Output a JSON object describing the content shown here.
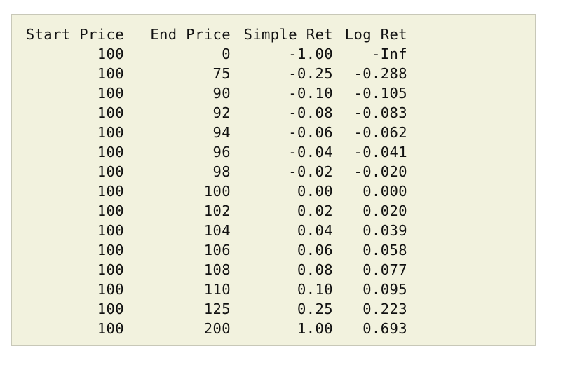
{
  "table": {
    "headers": [
      "Start Price",
      "End Price",
      "Simple Ret",
      "Log Ret"
    ],
    "rows": [
      [
        "100",
        "0",
        "-1.00",
        "-Inf"
      ],
      [
        "100",
        "75",
        "-0.25",
        "-0.288"
      ],
      [
        "100",
        "90",
        "-0.10",
        "-0.105"
      ],
      [
        "100",
        "92",
        "-0.08",
        "-0.083"
      ],
      [
        "100",
        "94",
        "-0.06",
        "-0.062"
      ],
      [
        "100",
        "96",
        "-0.04",
        "-0.041"
      ],
      [
        "100",
        "98",
        "-0.02",
        "-0.020"
      ],
      [
        "100",
        "100",
        "0.00",
        "0.000"
      ],
      [
        "100",
        "102",
        "0.02",
        "0.020"
      ],
      [
        "100",
        "104",
        "0.04",
        "0.039"
      ],
      [
        "100",
        "106",
        "0.06",
        "0.058"
      ],
      [
        "100",
        "108",
        "0.08",
        "0.077"
      ],
      [
        "100",
        "110",
        "0.10",
        "0.095"
      ],
      [
        "100",
        "125",
        "0.25",
        "0.223"
      ],
      [
        "100",
        "200",
        "1.00",
        "0.693"
      ]
    ]
  },
  "colors": {
    "panel_background": "#f2f2de",
    "panel_border": "#c8c8b8",
    "text": "#111111"
  }
}
